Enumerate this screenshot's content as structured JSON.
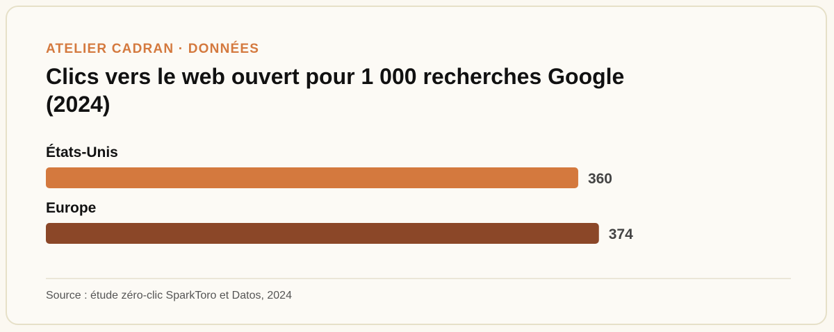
{
  "header": {
    "eyebrow": "ATELIER CADRAN · DONNÉES",
    "title": "Clics vers le web ouvert pour 1 000 recherches Google (2024)"
  },
  "footer": {
    "source": "Source : étude zéro-clic SparkToro et Datos, 2024"
  },
  "colors": {
    "accent": "#d4793e",
    "bar_us": "#d4793e",
    "bar_europe": "#8b4728"
  },
  "chart_data": {
    "type": "bar",
    "orientation": "horizontal",
    "title": "Clics vers le web ouvert pour 1 000 recherches Google (2024)",
    "categories": [
      "États-Unis",
      "Europe"
    ],
    "values": [
      360,
      374
    ],
    "value_labels": [
      "360",
      "374"
    ],
    "xlim": [
      0,
      470
    ],
    "grid": false,
    "legend": "none"
  }
}
